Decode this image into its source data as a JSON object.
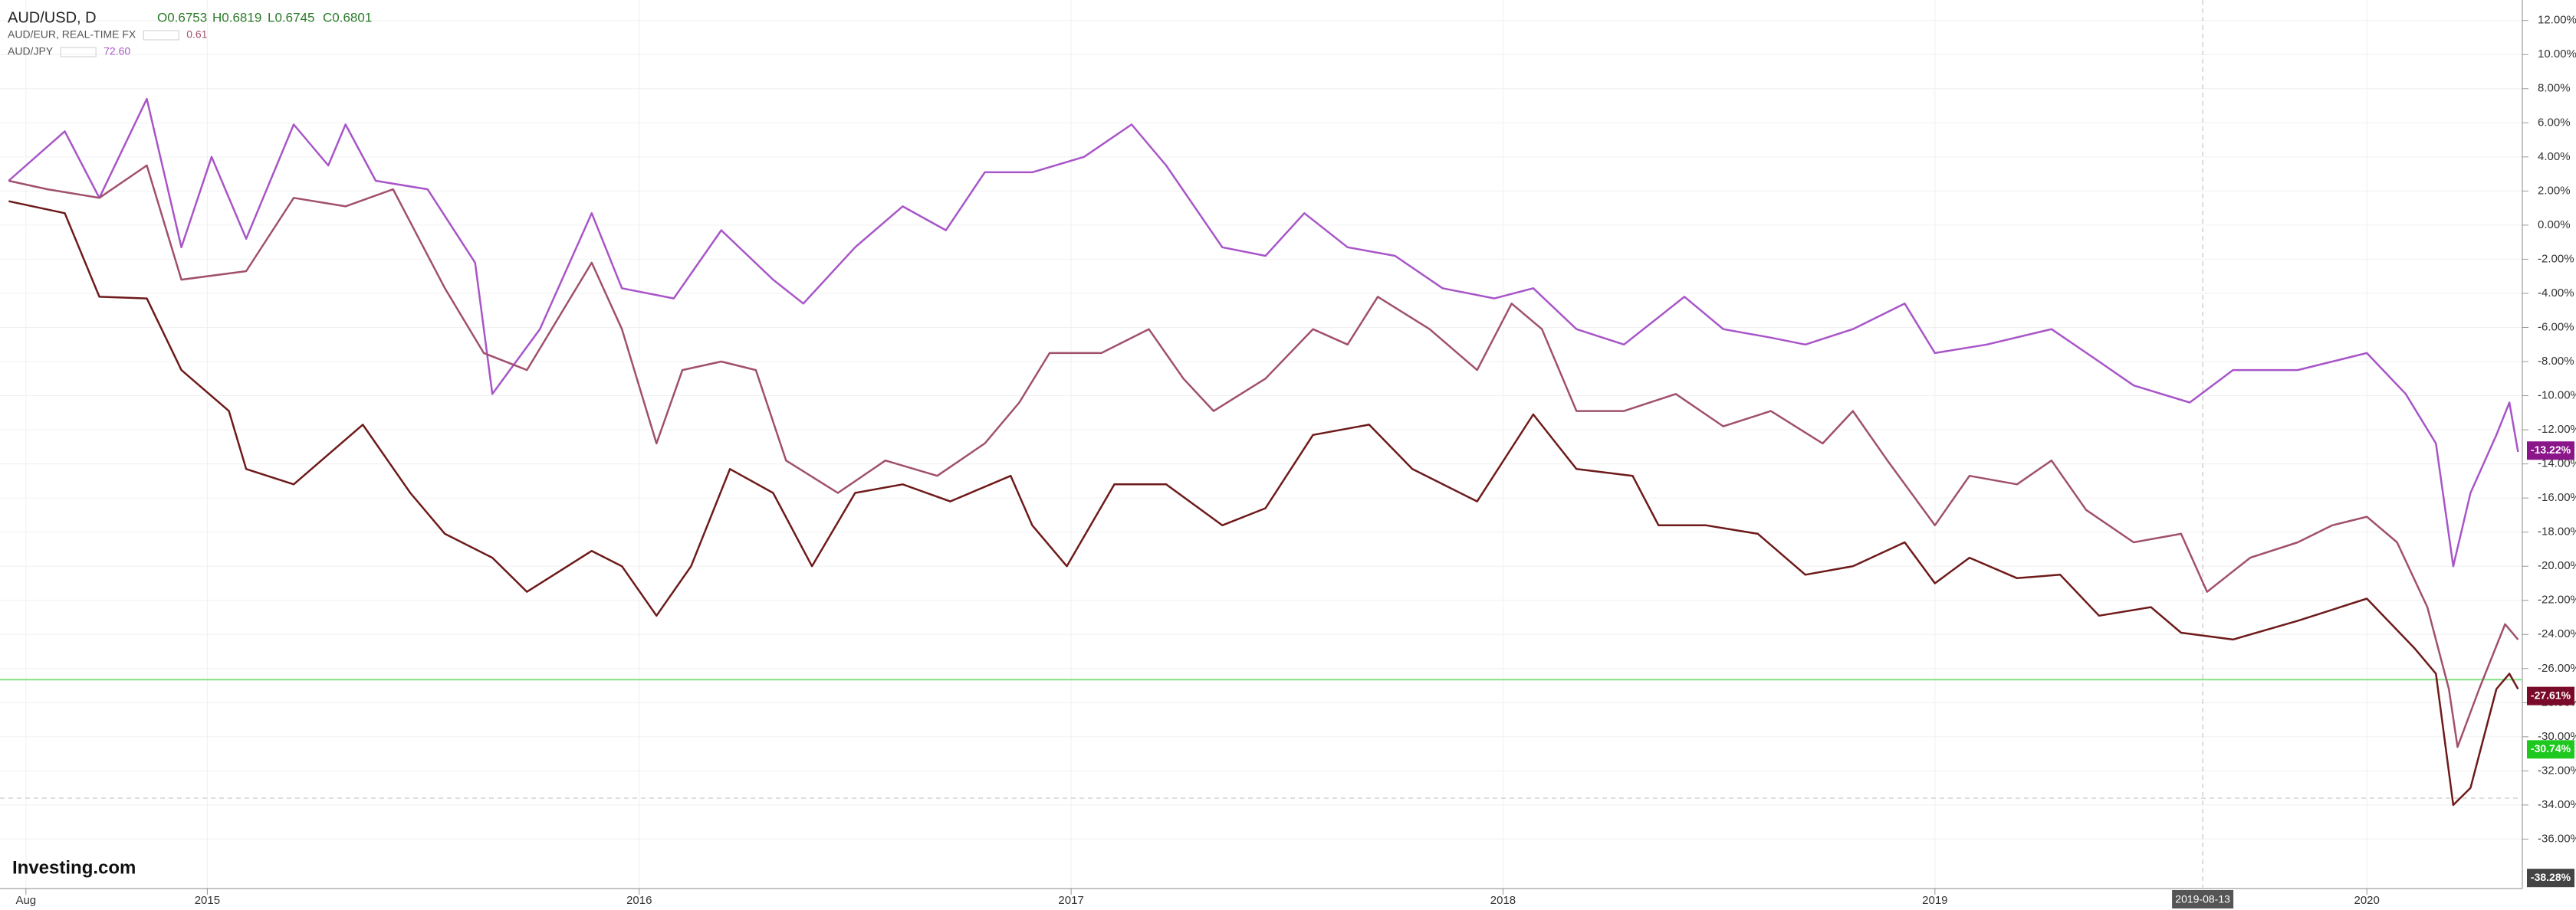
{
  "chart_data": {
    "type": "line",
    "title": "AUD/USD, D",
    "ohlc_labels": [
      "O0.6753",
      "H0.6819",
      "L0.6745",
      "C0.6801"
    ],
    "logo": "Investing.com",
    "xlim": [
      2014.52,
      2020.36
    ],
    "xticks": [
      {
        "value": 2014.58,
        "label": "Aug"
      },
      2015,
      2016,
      2017,
      2018,
      2019,
      2020
    ],
    "ylim": [
      -38.9,
      13.2
    ],
    "yticks": [
      {
        "value": 12,
        "label": "12.00%"
      },
      {
        "value": 10,
        "label": "10.00%"
      },
      {
        "value": 8,
        "label": "8.00%"
      },
      {
        "value": 6,
        "label": "6.00%"
      },
      {
        "value": 4,
        "label": "4.00%"
      },
      {
        "value": 2,
        "label": "2.00%"
      },
      {
        "value": 0,
        "label": "0.00%"
      },
      {
        "value": -2,
        "label": "-2.00%"
      },
      {
        "value": -4,
        "label": "-4.00%"
      },
      {
        "value": -6,
        "label": "-6.00%"
      },
      {
        "value": -8,
        "label": "-8.00%"
      },
      {
        "value": -10,
        "label": "-10.00%"
      },
      {
        "value": -12,
        "label": "-12.00%"
      },
      {
        "value": -14,
        "label": "-14.00%"
      },
      {
        "value": -16,
        "label": "-16.00%"
      },
      {
        "value": -18,
        "label": "-18.00%"
      },
      {
        "value": -20,
        "label": "-20.00%"
      },
      {
        "value": -22,
        "label": "-22.00%"
      },
      {
        "value": -24,
        "label": "-24.00%"
      },
      {
        "value": -26,
        "label": "-26.00%"
      },
      {
        "value": -28,
        "label": "-28.00%"
      },
      {
        "value": -30,
        "label": "-30.00%"
      },
      {
        "value": -32,
        "label": "-32.00%"
      },
      {
        "value": -34,
        "label": "-34.00%"
      },
      {
        "value": -36,
        "label": "-36.00%"
      }
    ],
    "grid": true,
    "series": [
      {
        "name": "AUD/USD, D",
        "color": "#6e1a1a",
        "x": [
          2014.54,
          2014.67,
          2014.75,
          2014.86,
          2014.94,
          2015.05,
          2015.09,
          2015.2,
          2015.36,
          2015.47,
          2015.55,
          2015.66,
          2015.74,
          2015.89,
          2015.96,
          2016.04,
          2016.12,
          2016.21,
          2016.31,
          2016.4,
          2016.5,
          2016.61,
          2016.72,
          2016.86,
          2016.91,
          2016.99,
          2017.1,
          2017.22,
          2017.35,
          2017.45,
          2017.56,
          2017.69,
          2017.79,
          2017.94,
          2018.07,
          2018.17,
          2018.3,
          2018.36,
          2018.47,
          2018.59,
          2018.7,
          2018.81,
          2018.93,
          2019.0,
          2019.08,
          2019.19,
          2019.29,
          2019.38,
          2019.5,
          2019.57,
          2019.69,
          2019.84,
          2020.0,
          2020.11,
          2020.16,
          2020.2,
          2020.24,
          2020.3,
          2020.33,
          2020.35
        ],
        "values": [
          1.4,
          0.7,
          -4.2,
          -4.3,
          -8.5,
          -10.9,
          -14.3,
          -15.2,
          -11.7,
          -15.7,
          -18.1,
          -19.5,
          -21.5,
          -19.1,
          -20.0,
          -22.9,
          -20.0,
          -14.3,
          -15.7,
          -20.0,
          -15.7,
          -15.2,
          -16.2,
          -14.7,
          -17.6,
          -20.0,
          -15.2,
          -15.2,
          -17.6,
          -16.6,
          -12.3,
          -11.7,
          -14.3,
          -16.2,
          -11.1,
          -14.3,
          -14.7,
          -17.6,
          -17.6,
          -18.1,
          -20.5,
          -20.0,
          -18.6,
          -21.0,
          -19.5,
          -20.7,
          -20.5,
          -22.9,
          -22.4,
          -23.9,
          -24.3,
          -23.2,
          -21.9,
          -24.8,
          -26.3,
          -34.0,
          -33.0,
          -27.2,
          -26.3,
          -27.2
        ]
      },
      {
        "name": "AUD/EUR, REAL-TIME FX",
        "header_value": "0.61",
        "color": "#a0506e",
        "x": [
          2014.54,
          2014.63,
          2014.75,
          2014.86,
          2014.94,
          2015.09,
          2015.2,
          2015.32,
          2015.43,
          2015.55,
          2015.64,
          2015.74,
          2015.89,
          2015.96,
          2016.04,
          2016.1,
          2016.19,
          2016.27,
          2016.34,
          2016.46,
          2016.57,
          2016.69,
          2016.8,
          2016.88,
          2016.95,
          2017.07,
          2017.18,
          2017.26,
          2017.33,
          2017.45,
          2017.56,
          2017.64,
          2017.71,
          2017.83,
          2017.94,
          2018.02,
          2018.09,
          2018.17,
          2018.28,
          2018.4,
          2018.51,
          2018.62,
          2018.74,
          2018.81,
          2018.89,
          2019.0,
          2019.08,
          2019.19,
          2019.27,
          2019.35,
          2019.46,
          2019.57,
          2019.63,
          2019.73,
          2019.84,
          2019.92,
          2020.0,
          2020.07,
          2020.14,
          2020.19,
          2020.21,
          2020.26,
          2020.32,
          2020.35
        ],
        "values": [
          2.6,
          2.1,
          1.6,
          3.5,
          -3.2,
          -2.7,
          1.6,
          1.1,
          2.1,
          -3.7,
          -7.5,
          -8.5,
          -2.2,
          -6.1,
          -12.8,
          -8.5,
          -8.0,
          -8.5,
          -13.8,
          -15.7,
          -13.8,
          -14.7,
          -12.8,
          -10.4,
          -7.5,
          -7.5,
          -6.1,
          -9.0,
          -10.9,
          -9.0,
          -6.1,
          -7.0,
          -4.2,
          -6.1,
          -8.5,
          -4.6,
          -6.1,
          -10.9,
          -10.9,
          -9.9,
          -11.8,
          -10.9,
          -12.8,
          -10.9,
          -13.8,
          -17.6,
          -14.7,
          -15.2,
          -13.8,
          -16.7,
          -18.6,
          -18.1,
          -21.5,
          -19.5,
          -18.6,
          -17.6,
          -17.1,
          -18.6,
          -22.4,
          -27.2,
          -30.6,
          -27.2,
          -23.4,
          -24.3
        ]
      },
      {
        "name": "AUD/JPY",
        "header_value": "72.60",
        "color": "#a855c8",
        "x": [
          2014.54,
          2014.67,
          2014.75,
          2014.86,
          2014.94,
          2015.01,
          2015.09,
          2015.2,
          2015.28,
          2015.32,
          2015.39,
          2015.51,
          2015.62,
          2015.66,
          2015.77,
          2015.89,
          2015.96,
          2016.08,
          2016.19,
          2016.31,
          2016.38,
          2016.5,
          2016.61,
          2016.71,
          2016.8,
          2016.91,
          2017.03,
          2017.14,
          2017.22,
          2017.35,
          2017.45,
          2017.54,
          2017.64,
          2017.75,
          2017.86,
          2017.98,
          2018.07,
          2018.17,
          2018.28,
          2018.42,
          2018.51,
          2018.62,
          2018.7,
          2018.81,
          2018.93,
          2019.0,
          2019.12,
          2019.27,
          2019.38,
          2019.46,
          2019.59,
          2019.69,
          2019.84,
          2020.0,
          2020.09,
          2020.16,
          2020.2,
          2020.24,
          2020.3,
          2020.33,
          2020.35
        ],
        "values": [
          2.6,
          5.5,
          1.6,
          7.4,
          -1.3,
          4.0,
          -0.8,
          5.9,
          3.5,
          5.9,
          2.6,
          2.1,
          -2.2,
          -9.9,
          -6.1,
          0.7,
          -3.7,
          -4.3,
          -0.3,
          -3.2,
          -4.6,
          -1.3,
          1.1,
          -0.3,
          3.1,
          3.1,
          4.0,
          5.9,
          3.5,
          -1.3,
          -1.8,
          0.7,
          -1.3,
          -1.8,
          -3.7,
          -4.3,
          -3.7,
          -6.1,
          -7.0,
          -4.2,
          -6.1,
          -6.6,
          -7.0,
          -6.1,
          -4.6,
          -7.5,
          -7.0,
          -6.1,
          -8.0,
          -9.4,
          -10.4,
          -8.5,
          -8.5,
          -7.5,
          -9.9,
          -12.8,
          -20.0,
          -15.7,
          -12.3,
          -10.4,
          -13.3
        ]
      }
    ],
    "reference_lines": [
      {
        "value": -26.65,
        "color": "#86e086"
      }
    ],
    "crosshair": {
      "x": 2019.62,
      "y": -33.6,
      "label": "2019-08-13"
    },
    "price_labels": [
      {
        "value": -13.22,
        "label": "-13.22%",
        "color": "#8a168a"
      },
      {
        "value": -27.61,
        "label": "-27.61%",
        "color": "#7a0a2a"
      },
      {
        "value": -30.74,
        "label": "-30.74%",
        "color": "#1ec81e"
      },
      {
        "value": -38.28,
        "label": "-38.28%",
        "color": "#444444"
      }
    ]
  }
}
